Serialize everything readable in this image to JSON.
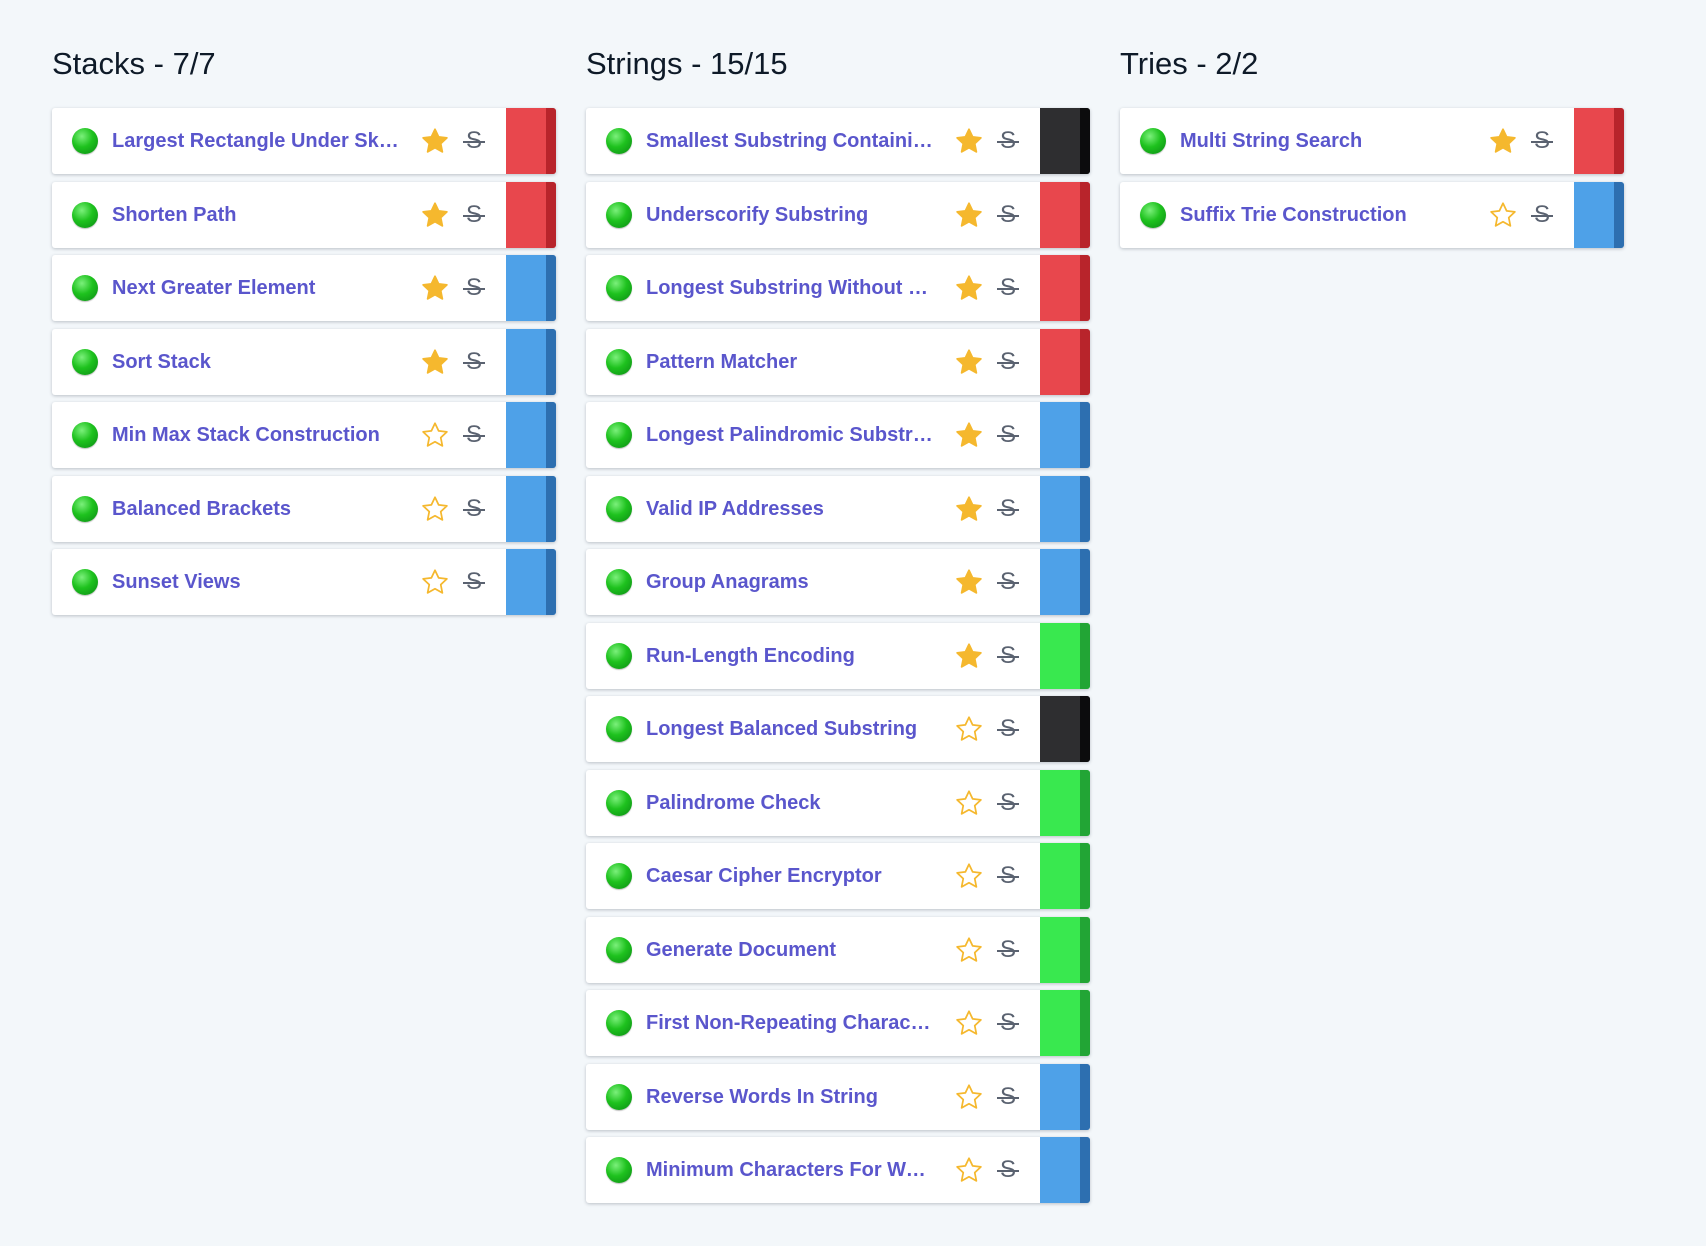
{
  "colors": {
    "hard": "#e8474d",
    "hard_edge": "#b8242b",
    "medium": "#4ea1e8",
    "medium_edge": "#2d6fb0",
    "easy": "#39e84f",
    "easy_edge": "#22a535",
    "veryhard": "#2e2e30",
    "veryhard_edge": "#0c0c0d",
    "star": "#f5b82e"
  },
  "columns": [
    {
      "title": "Stacks - 7/7",
      "items": [
        {
          "title": "Largest Rectangle Under Skyline",
          "starred": true,
          "difficulty": "hard"
        },
        {
          "title": "Shorten Path",
          "starred": true,
          "difficulty": "hard"
        },
        {
          "title": "Next Greater Element",
          "starred": true,
          "difficulty": "medium"
        },
        {
          "title": "Sort Stack",
          "starred": true,
          "difficulty": "medium"
        },
        {
          "title": "Min Max Stack Construction",
          "starred": false,
          "difficulty": "medium"
        },
        {
          "title": "Balanced Brackets",
          "starred": false,
          "difficulty": "medium"
        },
        {
          "title": "Sunset Views",
          "starred": false,
          "difficulty": "medium"
        }
      ]
    },
    {
      "title": "Strings - 15/15",
      "items": [
        {
          "title": "Smallest Substring Containing",
          "starred": true,
          "difficulty": "veryhard"
        },
        {
          "title": "Underscorify Substring",
          "starred": true,
          "difficulty": "hard"
        },
        {
          "title": "Longest Substring Without Duplication",
          "starred": true,
          "difficulty": "hard"
        },
        {
          "title": "Pattern Matcher",
          "starred": true,
          "difficulty": "hard"
        },
        {
          "title": "Longest Palindromic Substring",
          "starred": true,
          "difficulty": "medium"
        },
        {
          "title": "Valid IP Addresses",
          "starred": true,
          "difficulty": "medium"
        },
        {
          "title": "Group Anagrams",
          "starred": true,
          "difficulty": "medium"
        },
        {
          "title": "Run-Length Encoding",
          "starred": true,
          "difficulty": "easy"
        },
        {
          "title": "Longest Balanced Substring",
          "starred": false,
          "difficulty": "veryhard"
        },
        {
          "title": "Palindrome Check",
          "starred": false,
          "difficulty": "easy"
        },
        {
          "title": "Caesar Cipher Encryptor",
          "starred": false,
          "difficulty": "easy"
        },
        {
          "title": "Generate Document",
          "starred": false,
          "difficulty": "easy"
        },
        {
          "title": "First Non-Repeating Character",
          "starred": false,
          "difficulty": "easy"
        },
        {
          "title": "Reverse Words In String",
          "starred": false,
          "difficulty": "medium"
        },
        {
          "title": "Minimum Characters For Words",
          "starred": false,
          "difficulty": "medium"
        }
      ]
    },
    {
      "title": "Tries - 2/2",
      "items": [
        {
          "title": "Multi String Search",
          "starred": true,
          "difficulty": "hard"
        },
        {
          "title": "Suffix Trie Construction",
          "starred": false,
          "difficulty": "medium"
        }
      ]
    }
  ],
  "icons": {
    "status": "completed-dot-icon",
    "star": "star-icon",
    "skip": "strikethrough-s-icon",
    "skip_glyph": "S"
  }
}
